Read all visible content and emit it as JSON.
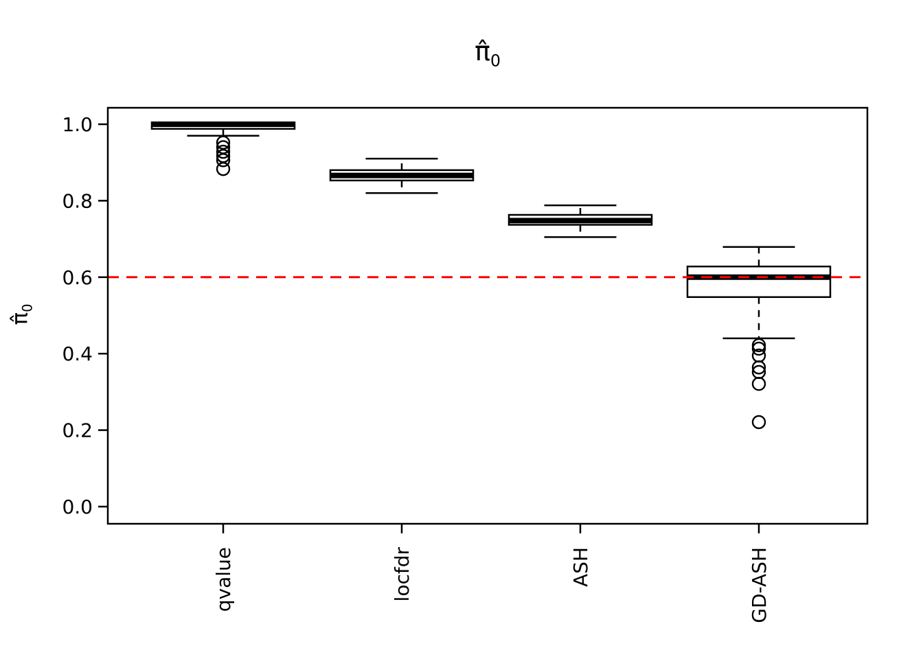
{
  "title": {
    "symbol": "π̂",
    "subscript": "0"
  },
  "y_axis_label": {
    "symbol": "π̂",
    "subscript": "0"
  },
  "chart_data": {
    "type": "boxplot",
    "title": "π̂₀",
    "ylabel": "π̂₀",
    "xlabel": "",
    "categories": [
      "qvalue",
      "locfdr",
      "ASH",
      "GD-ASH"
    ],
    "ylim": [
      0,
      1.04
    ],
    "yticks": [
      0,
      0.2,
      0.4,
      0.6,
      0.8,
      1.0
    ],
    "ytick_labels": [
      "0.0",
      "0.2",
      "0.4",
      "0.6",
      "0.8",
      "1.0"
    ],
    "grid": false,
    "reference_line": {
      "value": 0.6,
      "color": "#FF0000",
      "style": "dashed"
    },
    "boxes": [
      {
        "name": "qvalue",
        "whisker_low": 0.97,
        "q1": 0.988,
        "median": 1.0,
        "q3": 1.005,
        "whisker_high": 1.005,
        "outliers": [
          0.952,
          0.94,
          0.928,
          0.917,
          0.906,
          0.883
        ]
      },
      {
        "name": "locfdr",
        "whisker_low": 0.82,
        "q1": 0.853,
        "median": 0.866,
        "q3": 0.88,
        "whisker_high": 0.91,
        "outliers": []
      },
      {
        "name": "ASH",
        "whisker_low": 0.705,
        "q1": 0.737,
        "median": 0.748,
        "q3": 0.763,
        "whisker_high": 0.788,
        "outliers": []
      },
      {
        "name": "GD-ASH",
        "whisker_low": 0.44,
        "q1": 0.548,
        "median": 0.6,
        "q3": 0.628,
        "whisker_high": 0.679,
        "outliers": [
          0.422,
          0.413,
          0.395,
          0.364,
          0.352,
          0.321,
          0.221
        ]
      }
    ],
    "colors": {
      "stroke": "#000000",
      "box_fill": "#FFFFFF",
      "reference": "#FF0000",
      "background": "#FFFFFF"
    }
  }
}
